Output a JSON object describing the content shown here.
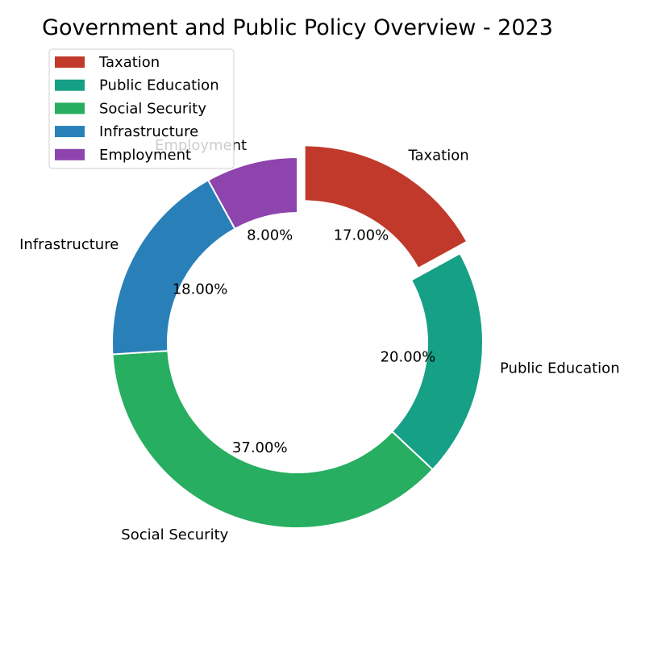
{
  "chart_data": {
    "type": "pie",
    "variant": "donut",
    "title": "Government and Public Policy Overview - 2023",
    "categories": [
      "Taxation",
      "Public Education",
      "Social Security",
      "Infrastructure",
      "Employment"
    ],
    "values": [
      17,
      20,
      37,
      18,
      8
    ],
    "value_labels": [
      "17.00%",
      "20.00%",
      "37.00%",
      "18.00%",
      "8.00%"
    ],
    "colors": [
      "#c0392b",
      "#16a085",
      "#27ae60",
      "#2980b9",
      "#8e44ad"
    ],
    "exploded": [
      "Taxation"
    ],
    "legend": {
      "position": "top-left",
      "entries": [
        "Taxation",
        "Public Education",
        "Social Security",
        "Infrastructure",
        "Employment"
      ]
    }
  }
}
